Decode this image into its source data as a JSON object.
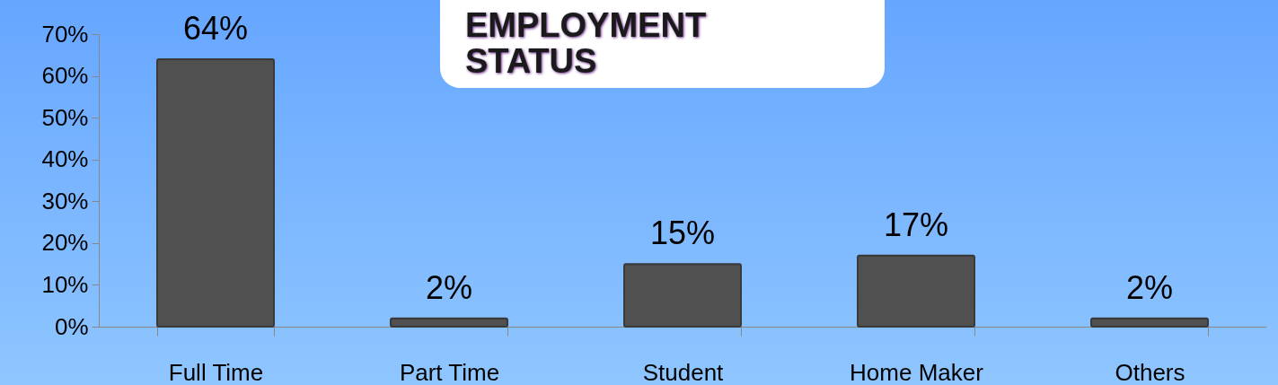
{
  "chart_data": {
    "type": "bar",
    "title": "EMPLOYMENT STATUS",
    "categories": [
      "Full Time",
      "Part Time",
      "Student",
      "Home Maker",
      "Others"
    ],
    "values": [
      64,
      2,
      15,
      17,
      2
    ],
    "value_labels": [
      "64%",
      "2%",
      "15%",
      "17%",
      "2%"
    ],
    "color": "#505050",
    "ylim": [
      0,
      70
    ],
    "yticks": [
      {
        "value": 0,
        "label": "0%"
      },
      {
        "value": 10,
        "label": "10%"
      },
      {
        "value": 20,
        "label": "20%"
      },
      {
        "value": 30,
        "label": "30%"
      },
      {
        "value": 40,
        "label": "40%"
      },
      {
        "value": 50,
        "label": "50%"
      },
      {
        "value": 60,
        "label": "60%"
      },
      {
        "value": 70,
        "label": "70%"
      }
    ]
  }
}
